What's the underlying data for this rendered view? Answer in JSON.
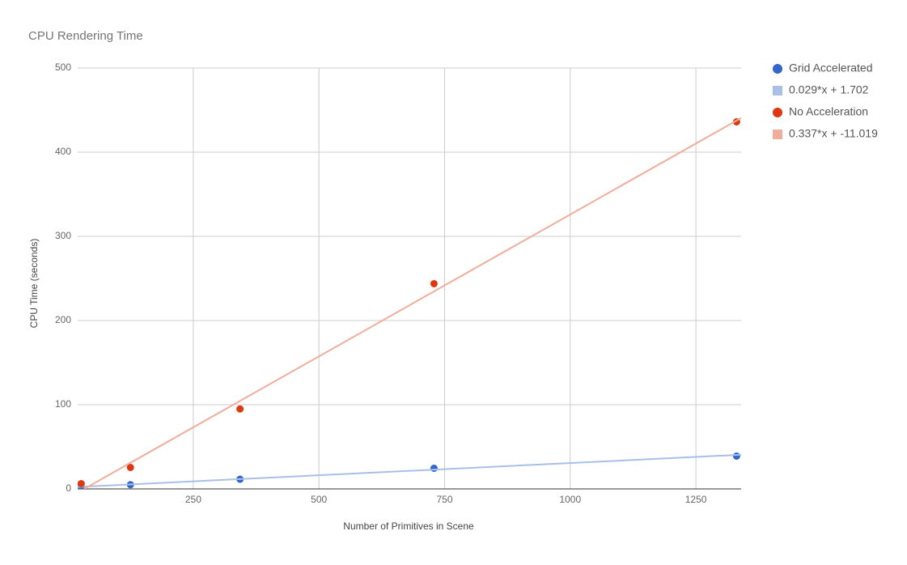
{
  "chart_data": {
    "type": "scatter",
    "title": "CPU Rendering Time",
    "x_label": "Number of Primitives in Scene",
    "y_label": "CPU Time (seconds)",
    "xlim": [
      20,
      1340
    ],
    "ylim": [
      0,
      500
    ],
    "xticks": [
      250,
      500,
      750,
      1000,
      1250
    ],
    "yticks": [
      0,
      100,
      200,
      300,
      400,
      500
    ],
    "grid": true,
    "legend": "right",
    "series": [
      {
        "name": "Grid Accelerated",
        "type": "scatter",
        "color": "#3366cc",
        "x": [
          27,
          125,
          343,
          729,
          1331
        ],
        "values": [
          2.5,
          5,
          11.5,
          24.5,
          39
        ]
      },
      {
        "name": "0.029*x + 1.702",
        "type": "line",
        "color": "#aabfe6",
        "x": [
          20,
          1340
        ],
        "values": [
          2.3,
          40.6
        ]
      },
      {
        "name": "No Acceleration",
        "type": "scatter",
        "color": "#dc3912",
        "x": [
          27,
          125,
          343,
          729,
          1331
        ],
        "values": [
          6.3,
          25.5,
          95,
          243.8,
          436
        ]
      },
      {
        "name": "0.337*x + -11.019",
        "type": "line",
        "color": "#efae9c",
        "x": [
          33,
          1340
        ],
        "values": [
          0,
          440.6
        ]
      }
    ]
  }
}
